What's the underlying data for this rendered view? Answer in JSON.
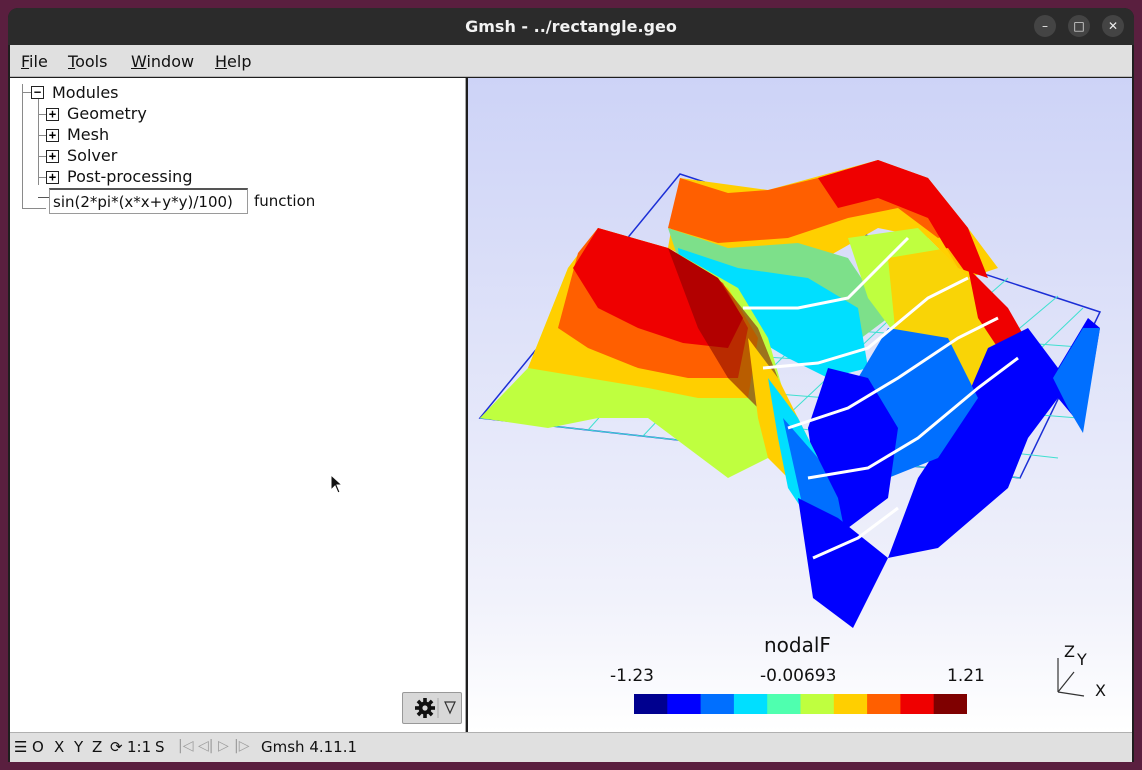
{
  "window": {
    "title": "Gmsh - ../rectangle.geo",
    "controls": {
      "minimize": "–",
      "maximize": "□",
      "close": "✕"
    }
  },
  "menu": {
    "file": {
      "underline": "F",
      "rest": "ile"
    },
    "tools": {
      "underline": "T",
      "rest": "ools"
    },
    "window": {
      "underline": "W",
      "rest": "indow"
    },
    "help": {
      "underline": "H",
      "rest": "elp"
    }
  },
  "tree": {
    "root": "Modules",
    "items": [
      "Geometry",
      "Mesh",
      "Solver",
      "Post-processing"
    ],
    "collapse_glyph": "−",
    "expand_glyph": "+"
  },
  "option": {
    "value": "sin(2*pi*(x*x+y*y)/100)",
    "label": "function"
  },
  "viewport": {
    "view_name": "nodalF",
    "scale": {
      "min": "-1.23",
      "mid": "-0.00693",
      "max": "1.21"
    },
    "colormap": [
      "#00008f",
      "#0000ff",
      "#006fff",
      "#00dfff",
      "#4fffaf",
      "#bfff3f",
      "#ffcf00",
      "#ff5f00",
      "#ef0000",
      "#7f0000"
    ],
    "axes": {
      "z": "Z",
      "y": "Y",
      "x": "X"
    }
  },
  "statusbar": {
    "menu_icon": "☰",
    "buttons": [
      "O",
      "X",
      "Y",
      "Z"
    ],
    "rotate_icon": "⟳",
    "scale": "1:1",
    "select": "S",
    "nav": [
      "|◁",
      "◁|",
      "▷",
      "|▷"
    ],
    "version": "Gmsh 4.11.1"
  }
}
